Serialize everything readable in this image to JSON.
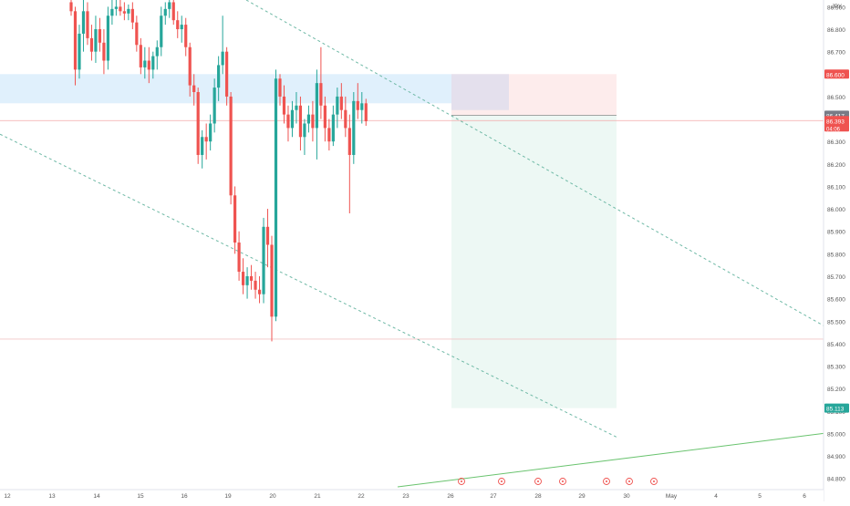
{
  "chart_data": {
    "type": "candlestick",
    "currency": "JPY",
    "y_axis": {
      "min": 84.75,
      "max": 86.93,
      "ticks": [
        84.8,
        84.9,
        85.0,
        85.1,
        85.2,
        85.3,
        85.4,
        85.5,
        85.6,
        85.7,
        85.8,
        85.9,
        86.0,
        86.1,
        86.2,
        86.3,
        86.4,
        86.5,
        86.6,
        86.7,
        86.8,
        86.9
      ],
      "tick_labels": [
        "84.800",
        "84.900",
        "85.000",
        "85.100",
        "85.200",
        "85.300",
        "85.400",
        "85.500",
        "85.600",
        "85.700",
        "85.800",
        "85.900",
        "86.000",
        "86.100",
        "86.200",
        "86.300",
        "86.400",
        "86.500",
        "86.600",
        "86.700",
        "86.800",
        "86.900"
      ]
    },
    "x_axis": {
      "labels": [
        "12",
        "13",
        "14",
        "15",
        "16",
        "19",
        "20",
        "21",
        "22",
        "23",
        "26",
        "27",
        "28",
        "29",
        "30",
        "May",
        "4",
        "5",
        "6"
      ]
    },
    "price_labels": {
      "target": "86.600",
      "last_price": "86.417",
      "current_price": "86.393",
      "countdown": "04:06",
      "stop": "85.113"
    },
    "candles": [
      [
        86.92,
        86.95,
        86.86,
        86.88
      ],
      [
        86.88,
        86.9,
        86.55,
        86.62
      ],
      [
        86.62,
        86.82,
        86.58,
        86.78
      ],
      [
        86.78,
        86.95,
        86.7,
        86.88
      ],
      [
        86.88,
        86.92,
        86.73,
        86.76
      ],
      [
        86.76,
        86.82,
        86.66,
        86.7
      ],
      [
        86.7,
        86.86,
        86.65,
        86.8
      ],
      [
        86.8,
        86.85,
        86.7,
        86.74
      ],
      [
        86.74,
        86.8,
        86.6,
        86.66
      ],
      [
        86.66,
        86.9,
        86.62,
        86.86
      ],
      [
        86.86,
        86.93,
        86.82,
        86.89
      ],
      [
        86.89,
        86.93,
        86.86,
        86.9
      ],
      [
        86.9,
        86.95,
        86.86,
        86.88
      ],
      [
        86.88,
        86.92,
        86.84,
        86.87
      ],
      [
        86.87,
        86.91,
        86.84,
        86.89
      ],
      [
        86.89,
        86.92,
        86.8,
        86.83
      ],
      [
        86.83,
        86.86,
        86.7,
        86.73
      ],
      [
        86.73,
        86.76,
        86.6,
        86.63
      ],
      [
        86.63,
        86.72,
        86.58,
        86.66
      ],
      [
        86.66,
        86.72,
        86.56,
        86.62
      ],
      [
        86.62,
        86.7,
        86.58,
        86.68
      ],
      [
        86.68,
        86.75,
        86.62,
        86.72
      ],
      [
        86.72,
        86.9,
        86.68,
        86.86
      ],
      [
        86.86,
        86.92,
        86.82,
        86.89
      ],
      [
        86.89,
        86.95,
        86.85,
        86.92
      ],
      [
        86.92,
        86.93,
        86.82,
        86.84
      ],
      [
        86.84,
        86.88,
        86.76,
        86.8
      ],
      [
        86.8,
        86.86,
        86.74,
        86.82
      ],
      [
        86.82,
        86.85,
        86.68,
        86.72
      ],
      [
        86.72,
        86.74,
        86.5,
        86.55
      ],
      [
        86.55,
        86.6,
        86.46,
        86.52
      ],
      [
        86.52,
        86.54,
        86.2,
        86.24
      ],
      [
        86.24,
        86.35,
        86.18,
        86.32
      ],
      [
        86.32,
        86.38,
        86.22,
        86.3
      ],
      [
        86.3,
        86.42,
        86.26,
        86.38
      ],
      [
        86.38,
        86.58,
        86.34,
        86.54
      ],
      [
        86.54,
        86.68,
        86.48,
        86.64
      ],
      [
        86.64,
        86.86,
        86.6,
        86.7
      ],
      [
        86.7,
        86.72,
        86.46,
        86.5
      ],
      [
        86.5,
        86.52,
        86.02,
        86.06
      ],
      [
        86.06,
        86.1,
        85.8,
        85.85
      ],
      [
        85.85,
        85.9,
        85.68,
        85.72
      ],
      [
        85.72,
        85.78,
        85.62,
        85.66
      ],
      [
        85.66,
        85.74,
        85.6,
        85.7
      ],
      [
        85.7,
        85.75,
        85.64,
        85.68
      ],
      [
        85.68,
        85.72,
        85.6,
        85.64
      ],
      [
        85.64,
        85.7,
        85.58,
        85.62
      ],
      [
        85.62,
        85.96,
        85.58,
        85.92
      ],
      [
        85.92,
        86.0,
        85.74,
        85.84
      ],
      [
        85.84,
        85.88,
        85.41,
        85.52
      ],
      [
        85.52,
        86.62,
        85.5,
        86.58
      ],
      [
        86.58,
        86.6,
        86.46,
        86.5
      ],
      [
        86.5,
        86.55,
        86.38,
        86.42
      ],
      [
        86.42,
        86.46,
        86.3,
        86.36
      ],
      [
        86.36,
        86.48,
        86.32,
        86.44
      ],
      [
        86.44,
        86.52,
        86.38,
        86.46
      ],
      [
        86.46,
        86.5,
        86.26,
        86.32
      ],
      [
        86.32,
        86.4,
        86.24,
        86.38
      ],
      [
        86.38,
        86.46,
        86.34,
        86.42
      ],
      [
        86.42,
        86.48,
        86.3,
        86.36
      ],
      [
        86.36,
        86.62,
        86.22,
        86.56
      ],
      [
        86.56,
        86.72,
        86.4,
        86.46
      ],
      [
        86.46,
        86.5,
        86.3,
        86.36
      ],
      [
        86.36,
        86.4,
        86.26,
        86.3
      ],
      [
        86.3,
        86.46,
        86.28,
        86.42
      ],
      [
        86.42,
        86.54,
        86.36,
        86.5
      ],
      [
        86.5,
        86.56,
        86.4,
        86.44
      ],
      [
        86.44,
        86.5,
        86.32,
        86.36
      ],
      [
        86.36,
        86.42,
        85.98,
        86.24
      ],
      [
        86.24,
        86.52,
        86.2,
        86.48
      ],
      [
        86.48,
        86.56,
        86.4,
        86.44
      ],
      [
        86.44,
        86.52,
        86.38,
        86.47
      ],
      [
        86.47,
        86.49,
        86.37,
        86.39
      ]
    ]
  }
}
